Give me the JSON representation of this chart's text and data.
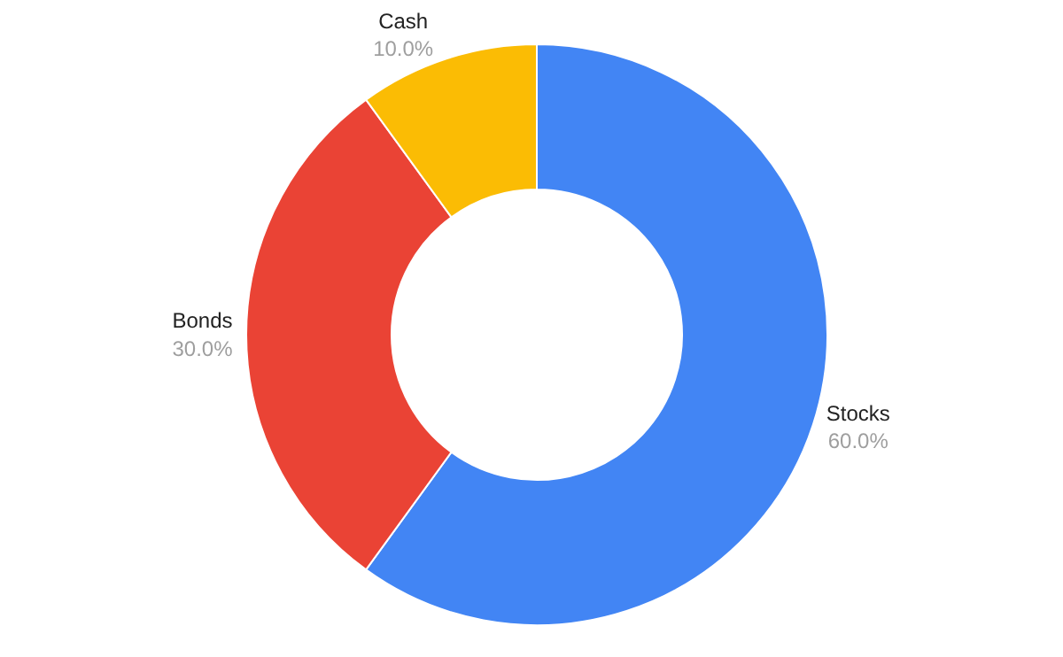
{
  "chart_data": {
    "type": "donut",
    "categories": [
      "Stocks",
      "Bonds",
      "Cash"
    ],
    "values": [
      60,
      30,
      10
    ],
    "colors": [
      "#4285f4",
      "#ea4335",
      "#fbbc04"
    ],
    "value_labels": [
      "60.0%",
      "30.0%",
      "10.0%"
    ],
    "legend": false
  }
}
